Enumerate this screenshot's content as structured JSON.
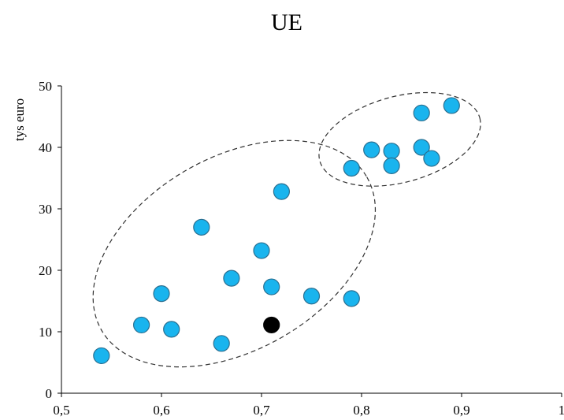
{
  "chart_data": {
    "type": "scatter",
    "title": "UE",
    "xlabel": "",
    "ylabel": "tys euro",
    "xlim": [
      0.5,
      1.0
    ],
    "ylim": [
      0,
      50
    ],
    "x_ticks": [
      "0,5",
      "0,6",
      "0,7",
      "0,8",
      "0,9",
      "1"
    ],
    "y_ticks": [
      "0",
      "10",
      "20",
      "30",
      "40",
      "50"
    ],
    "grid": false,
    "legend": "none",
    "series": [
      {
        "color": "#19b4ee",
        "points": [
          {
            "x": 0.54,
            "y": 6.1
          },
          {
            "x": 0.58,
            "y": 11.1
          },
          {
            "x": 0.6,
            "y": 16.2
          },
          {
            "x": 0.61,
            "y": 10.4
          },
          {
            "x": 0.64,
            "y": 27.0
          },
          {
            "x": 0.66,
            "y": 8.1
          },
          {
            "x": 0.67,
            "y": 18.7
          },
          {
            "x": 0.7,
            "y": 23.2
          },
          {
            "x": 0.71,
            "y": 17.3
          },
          {
            "x": 0.72,
            "y": 32.8
          },
          {
            "x": 0.75,
            "y": 15.8
          },
          {
            "x": 0.79,
            "y": 15.4
          },
          {
            "x": 0.79,
            "y": 36.6
          },
          {
            "x": 0.81,
            "y": 39.6
          },
          {
            "x": 0.83,
            "y": 39.4
          },
          {
            "x": 0.83,
            "y": 37.0
          },
          {
            "x": 0.86,
            "y": 45.6
          },
          {
            "x": 0.86,
            "y": 40.0
          },
          {
            "x": 0.87,
            "y": 38.2
          },
          {
            "x": 0.89,
            "y": 46.8
          }
        ]
      },
      {
        "color": "#000000",
        "points": [
          {
            "x": 0.71,
            "y": 11.1
          }
        ]
      }
    ],
    "annotations": [
      {
        "shape": "dashed-ellipse",
        "cx": 0.6727,
        "cy": 22.7,
        "rx_units": 0.1531,
        "ry_units": 15.66,
        "rotate_deg": -30
      },
      {
        "shape": "dashed-ellipse",
        "cx": 0.8382,
        "cy": 41.3,
        "rx_units": 0.0828,
        "ry_units": 7.0,
        "rotate_deg": -15
      }
    ]
  }
}
